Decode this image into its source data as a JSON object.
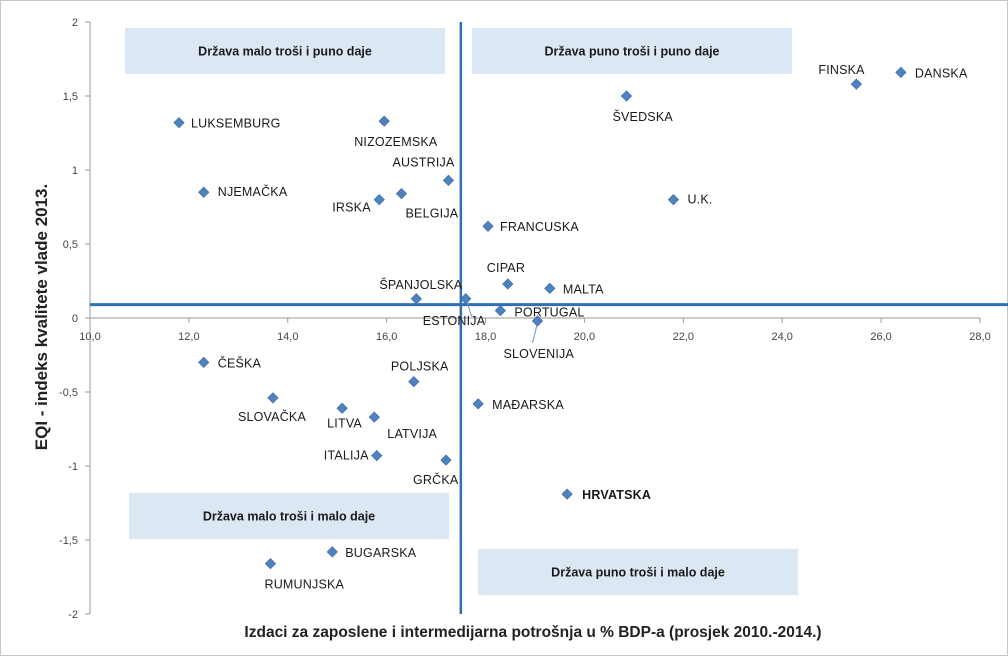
{
  "chart_data": {
    "type": "scatter",
    "xlabel": "Izdaci za zaposlene i intermedijarna potrošnja u % BDP-a (prosjek 2010.-2014.)",
    "ylabel": "EQI - indeks kvalitete vlade 2013.",
    "xlim": [
      10,
      28
    ],
    "ylim": [
      -2,
      2
    ],
    "x_ticks": [
      "10,0",
      "12,0",
      "14,0",
      "16,0",
      "18,0",
      "20,0",
      "22,0",
      "24,0",
      "26,0",
      "28,0"
    ],
    "y_ticks": [
      "2",
      "1,5",
      "1",
      "0,5",
      "0",
      "-0,5",
      "-1",
      "-1,5",
      "-2"
    ],
    "reference_lines": {
      "x": 17.5,
      "y": 0.09
    },
    "quadrant_labels": [
      "Država malo troši i puno daje",
      "Država puno troši i puno daje",
      "Država malo troši i malo daje",
      "Država puno troši i malo daje"
    ],
    "marker_color": "#4f81bd",
    "axis_line_color": "#2e6fb5",
    "highlight_color": "#c0282d",
    "points": [
      {
        "name": "FINSKA",
        "x": 25.5,
        "y": 1.58
      },
      {
        "name": "DANSKA",
        "x": 26.4,
        "y": 1.66
      },
      {
        "name": "ŠVEDSKA",
        "x": 20.85,
        "y": 1.5
      },
      {
        "name": "LUKSEMBURG",
        "x": 11.8,
        "y": 1.32
      },
      {
        "name": "NIZOZEMSKA",
        "x": 15.95,
        "y": 1.33
      },
      {
        "name": "AUSTRIJA",
        "x": 17.25,
        "y": 0.93
      },
      {
        "name": "NJEMAČKA",
        "x": 12.3,
        "y": 0.85
      },
      {
        "name": "IRSKA",
        "x": 15.85,
        "y": 0.8
      },
      {
        "name": "BELGIJA",
        "x": 16.3,
        "y": 0.84
      },
      {
        "name": "U.K.",
        "x": 21.8,
        "y": 0.8
      },
      {
        "name": "FRANCUSKA",
        "x": 18.05,
        "y": 0.62
      },
      {
        "name": "CIPAR",
        "x": 18.45,
        "y": 0.23
      },
      {
        "name": "MALTA",
        "x": 19.3,
        "y": 0.2
      },
      {
        "name": "ŠPANJOLSKA",
        "x": 16.6,
        "y": 0.13
      },
      {
        "name": "ESTONIJA",
        "x": 17.6,
        "y": 0.13
      },
      {
        "name": "PORTUGAL",
        "x": 18.3,
        "y": 0.05
      },
      {
        "name": "SLOVENIJA",
        "x": 19.05,
        "y": -0.02
      },
      {
        "name": "ČEŠKA",
        "x": 12.3,
        "y": -0.3
      },
      {
        "name": "POLJSKA",
        "x": 16.55,
        "y": -0.43
      },
      {
        "name": "SLOVAČKA",
        "x": 13.7,
        "y": -0.54
      },
      {
        "name": "MAĐARSKA",
        "x": 17.85,
        "y": -0.58
      },
      {
        "name": "LITVA",
        "x": 15.1,
        "y": -0.61
      },
      {
        "name": "LATVIJA",
        "x": 15.75,
        "y": -0.67
      },
      {
        "name": "ITALIJA",
        "x": 15.8,
        "y": -0.93
      },
      {
        "name": "GRČKA",
        "x": 17.2,
        "y": -0.96
      },
      {
        "name": "HRVATSKA",
        "x": 19.65,
        "y": -1.19,
        "highlight": true
      },
      {
        "name": "BUGARSKA",
        "x": 14.9,
        "y": -1.58
      },
      {
        "name": "RUMUNJSKA",
        "x": 13.65,
        "y": -1.66
      }
    ]
  }
}
